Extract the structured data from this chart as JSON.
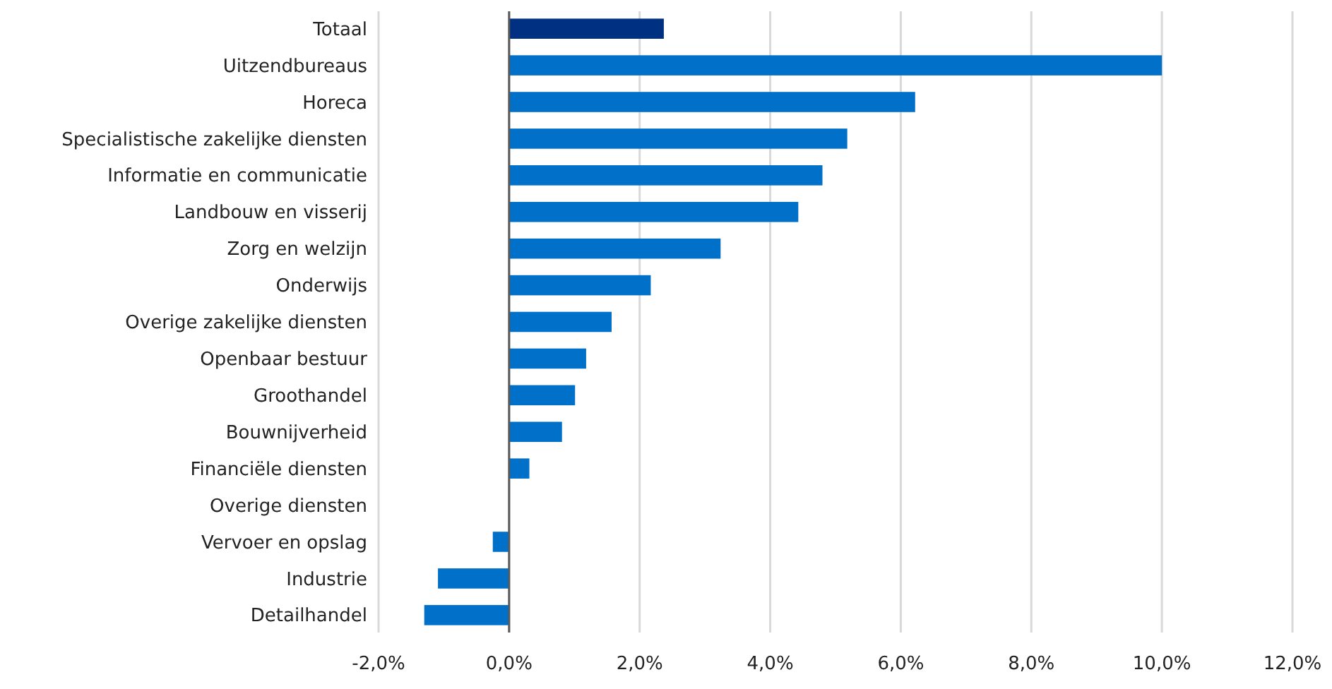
{
  "chart_data": {
    "type": "bar",
    "orientation": "horizontal",
    "categories": [
      "Totaal",
      "Uitzendbureaus",
      "Horeca",
      "Specialistische zakelijke diensten",
      "Informatie en communicatie",
      "Landbouw en visserij",
      "Zorg en welzijn",
      "Onderwijs",
      "Overige zakelijke diensten",
      "Openbaar bestuur",
      "Groothandel",
      "Bouwnijverheid",
      "Financiële diensten",
      "Overige diensten",
      "Vervoer en opslag",
      "Industrie",
      "Detailhandel"
    ],
    "values": [
      2.37,
      10.0,
      6.22,
      5.18,
      4.8,
      4.43,
      3.24,
      2.17,
      1.57,
      1.18,
      1.01,
      0.81,
      0.31,
      0,
      -0.25,
      -1.09,
      -1.3
    ],
    "colors": [
      "#003082",
      "#0070c8",
      "#0070c8",
      "#0070c8",
      "#0070c8",
      "#0070c8",
      "#0070c8",
      "#0070c8",
      "#0070c8",
      "#0070c8",
      "#0070c8",
      "#0070c8",
      "#0070c8",
      "#0070c8",
      "#0070c8",
      "#0070c8",
      "#0070c8"
    ],
    "xlim": [
      -2,
      12
    ],
    "xticks": [
      {
        "value": -2,
        "label": "-2,0%"
      },
      {
        "value": 0,
        "label": "0,0%"
      },
      {
        "value": 2,
        "label": "2,0%"
      },
      {
        "value": 4,
        "label": "4,0%"
      },
      {
        "value": 6,
        "label": "6,0%"
      },
      {
        "value": 8,
        "label": "8,0%"
      },
      {
        "value": 10,
        "label": "10,0%"
      },
      {
        "value": 12,
        "label": "12,0%"
      }
    ],
    "grid": "x"
  }
}
